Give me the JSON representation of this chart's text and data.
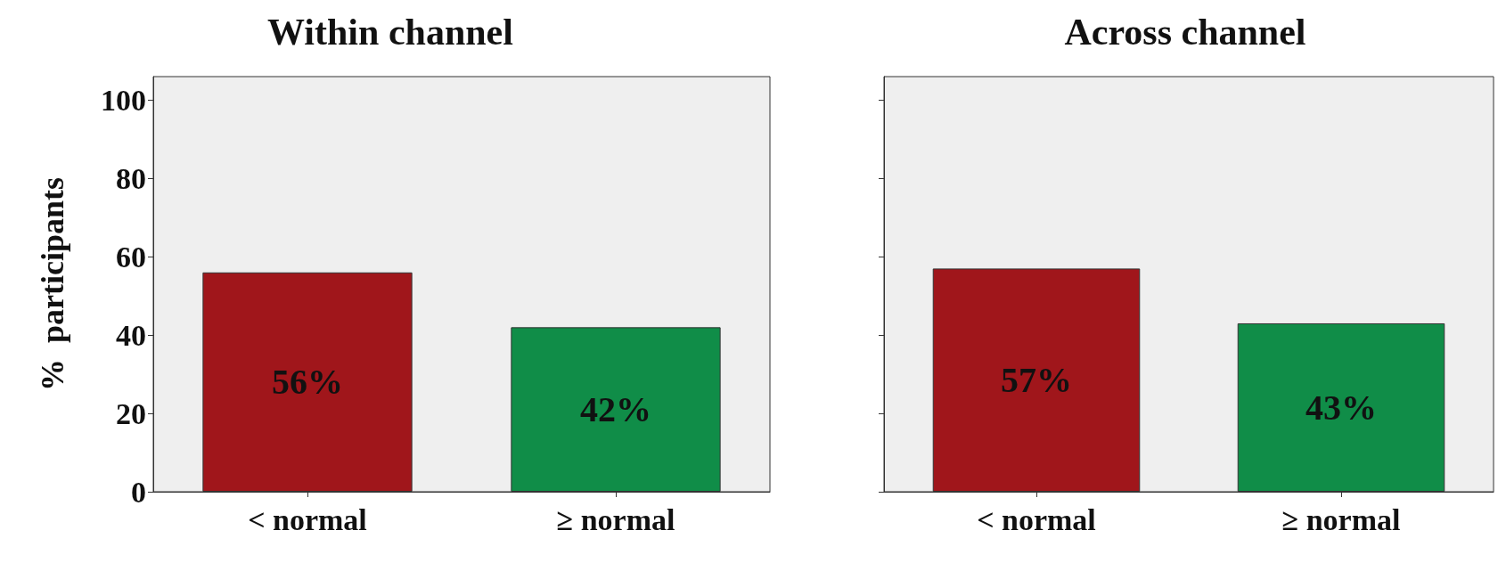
{
  "chart_data": [
    {
      "type": "bar",
      "title": "Within channel",
      "ylabel": "%  participants",
      "categories": [
        "< normal",
        "≥ normal"
      ],
      "values": [
        56,
        42
      ],
      "colors": [
        "#a0161b",
        "#108d48"
      ],
      "value_labels": [
        "56%",
        "42%"
      ],
      "ylim": [
        0,
        106
      ],
      "yticks": [
        0,
        20,
        40,
        60,
        80,
        100
      ],
      "grid": false
    },
    {
      "type": "bar",
      "title": "Across channel",
      "categories": [
        "< normal",
        "≥ normal"
      ],
      "values": [
        57,
        43
      ],
      "colors": [
        "#a0161b",
        "#108d48"
      ],
      "value_labels": [
        "57%",
        "43%"
      ],
      "ylim": [
        0,
        106
      ],
      "yticks": [
        0,
        20,
        40,
        60,
        80,
        100
      ],
      "grid": false,
      "tick_labels": "x"
    }
  ]
}
